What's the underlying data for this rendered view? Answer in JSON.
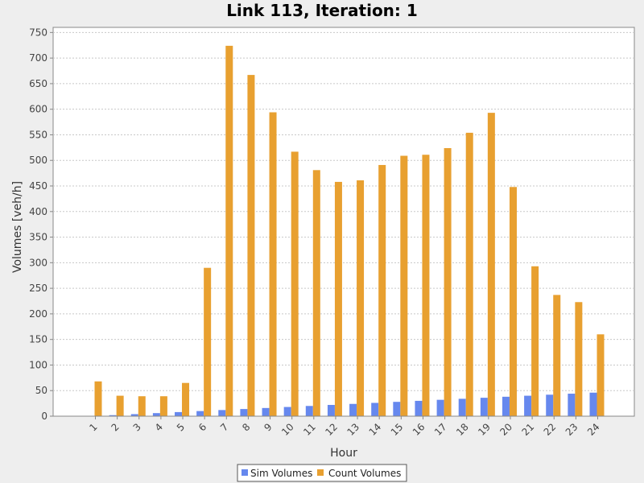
{
  "chart_data": {
    "type": "bar",
    "title": "Link 113, Iteration: 1",
    "xlabel": "Hour",
    "ylabel": "Volumes [veh/h]",
    "ylim": [
      0,
      760
    ],
    "y_ticks": [
      0,
      50,
      100,
      150,
      200,
      250,
      300,
      350,
      400,
      450,
      500,
      550,
      600,
      650,
      700,
      750
    ],
    "categories": [
      "1",
      "2",
      "3",
      "4",
      "5",
      "6",
      "7",
      "8",
      "9",
      "10",
      "11",
      "12",
      "13",
      "14",
      "15",
      "16",
      "17",
      "18",
      "19",
      "20",
      "21",
      "22",
      "23",
      "24"
    ],
    "series": [
      {
        "name": "Sim Volumes",
        "color": "#6688ee",
        "values": [
          0,
          2,
          4,
          6,
          8,
          10,
          12,
          14,
          16,
          18,
          20,
          22,
          24,
          26,
          28,
          30,
          32,
          34,
          36,
          38,
          40,
          42,
          44,
          46
        ]
      },
      {
        "name": "Count Volumes",
        "color": "#e8a030",
        "values": [
          68,
          40,
          39,
          39,
          65,
          290,
          724,
          667,
          594,
          517,
          481,
          458,
          461,
          491,
          509,
          511,
          524,
          554,
          593,
          448,
          293,
          237,
          223,
          160
        ]
      }
    ],
    "grid": true,
    "legend": "bottom-center"
  }
}
